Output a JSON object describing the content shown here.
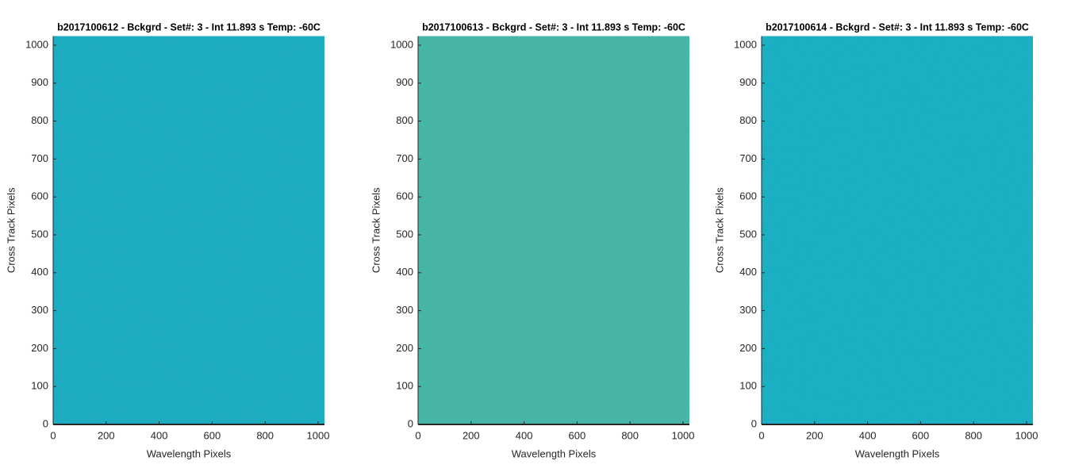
{
  "chart_data": [
    {
      "type": "image",
      "title": "b2017100612 - Bckgrd - Set#: 3 - Int 11.893 s Temp: -60C",
      "xlabel": "Wavelength Pixels",
      "ylabel": "Cross Track Pixels",
      "color": "#1aa3b9",
      "xlim": [
        0,
        1024
      ],
      "ylim": [
        0,
        1024
      ],
      "xticks": [
        0,
        200,
        400,
        600,
        800,
        1000
      ],
      "yticks": [
        0,
        100,
        200,
        300,
        400,
        500,
        600,
        700,
        800,
        900,
        1000
      ]
    },
    {
      "type": "image",
      "title": "b2017100613 - Bckgrd - Set#: 3 - Int 11.893 s Temp: -60C",
      "xlabel": "Wavelength Pixels",
      "ylabel": "Cross Track Pixels",
      "color": "#40ad9c",
      "xlim": [
        0,
        1024
      ],
      "ylim": [
        0,
        1024
      ],
      "xticks": [
        0,
        200,
        400,
        600,
        800,
        1000
      ],
      "yticks": [
        0,
        100,
        200,
        300,
        400,
        500,
        600,
        700,
        800,
        900,
        1000
      ]
    },
    {
      "type": "image",
      "title": "b2017100614 - Bckgrd - Set#: 3 - Int 11.893 s Temp: -60C",
      "xlabel": "Wavelength Pixels",
      "ylabel": "Cross Track Pixels",
      "color": "#18a6bc",
      "xlim": [
        0,
        1024
      ],
      "ylim": [
        0,
        1024
      ],
      "xticks": [
        0,
        200,
        400,
        600,
        800,
        1000
      ],
      "yticks": [
        0,
        100,
        200,
        300,
        400,
        500,
        600,
        700,
        800,
        900,
        1000
      ]
    }
  ]
}
